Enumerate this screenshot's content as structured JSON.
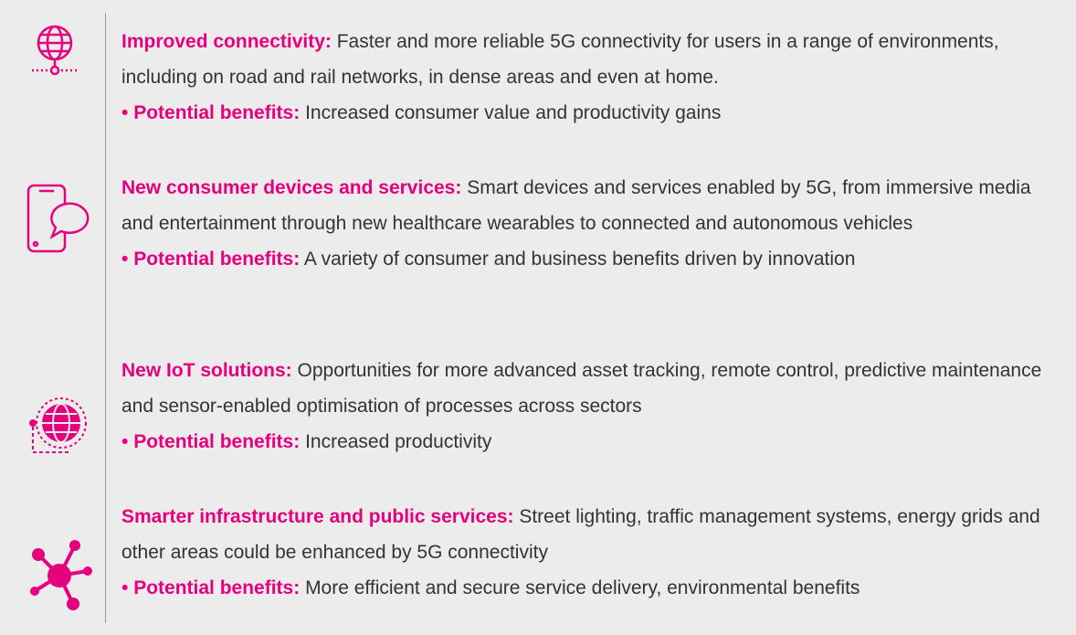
{
  "items": [
    {
      "heading": "Improved connectivity:",
      "text": "Faster and more reliable 5G connectivity for users in a range of environments, including on road and rail networks, in dense areas and even at home.",
      "benefit_label": "Potential benefits:",
      "benefit": "Increased consumer value and productivity gains"
    },
    {
      "heading": "New consumer devices and services:",
      "text": "Smart devices and services enabled by 5G, from immersive media and entertainment through new healthcare wearables to connected and autonomous vehicles",
      "benefit_label": "Potential benefits:",
      "benefit": "A variety of consumer and business benefits driven by innovation"
    },
    {
      "heading": "New IoT solutions:",
      "text": "Opportunities for more advanced asset tracking, remote control, predictive maintenance and sensor-enabled optimisation of processes across sectors",
      "benefit_label": "Potential benefits:",
      "benefit": "Increased productivity"
    },
    {
      "heading": "Smarter infrastructure and public services:",
      "text": "Street lighting, traffic management systems, energy grids and other areas could be enhanced by 5G connectivity",
      "benefit_label": "Potential benefits:",
      "benefit": "More efficient and secure service delivery, environmental benefits"
    }
  ]
}
